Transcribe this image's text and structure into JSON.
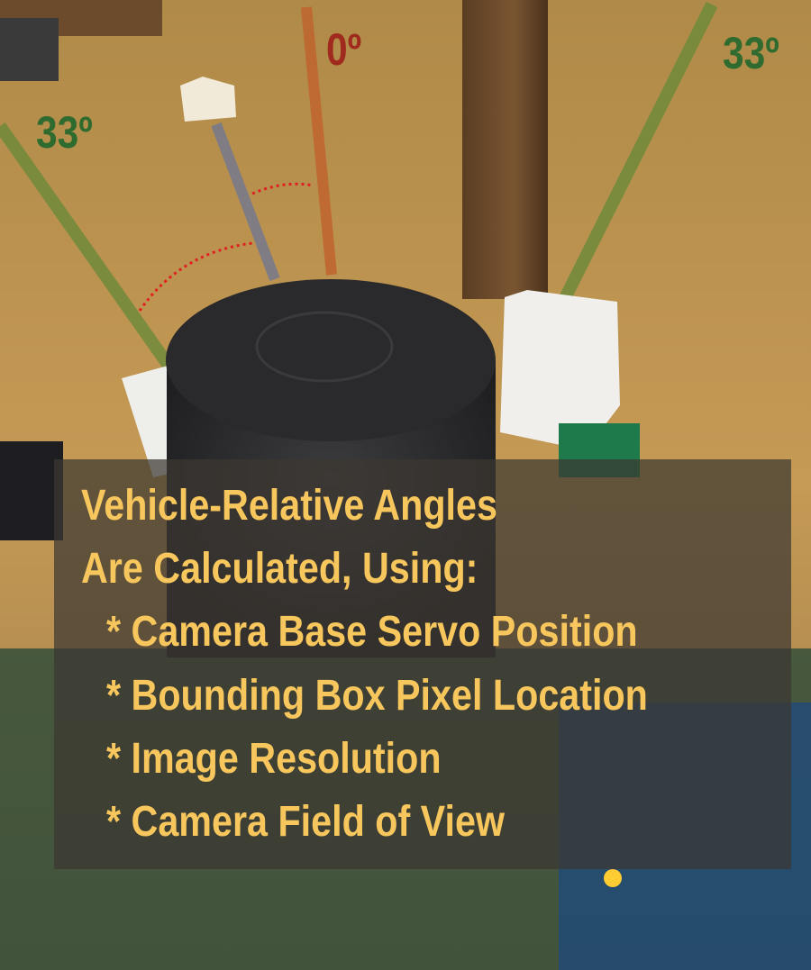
{
  "annotations": {
    "left": "33º",
    "center": "0º",
    "right": "33º"
  },
  "caption": {
    "lines": [
      "Vehicle-Relative Angles",
      "Are Calculated, Using:",
      "* Camera Base Servo Position",
      "* Bounding Box Pixel Location",
      "* Image Resolution",
      "* Camera Field of View"
    ]
  }
}
